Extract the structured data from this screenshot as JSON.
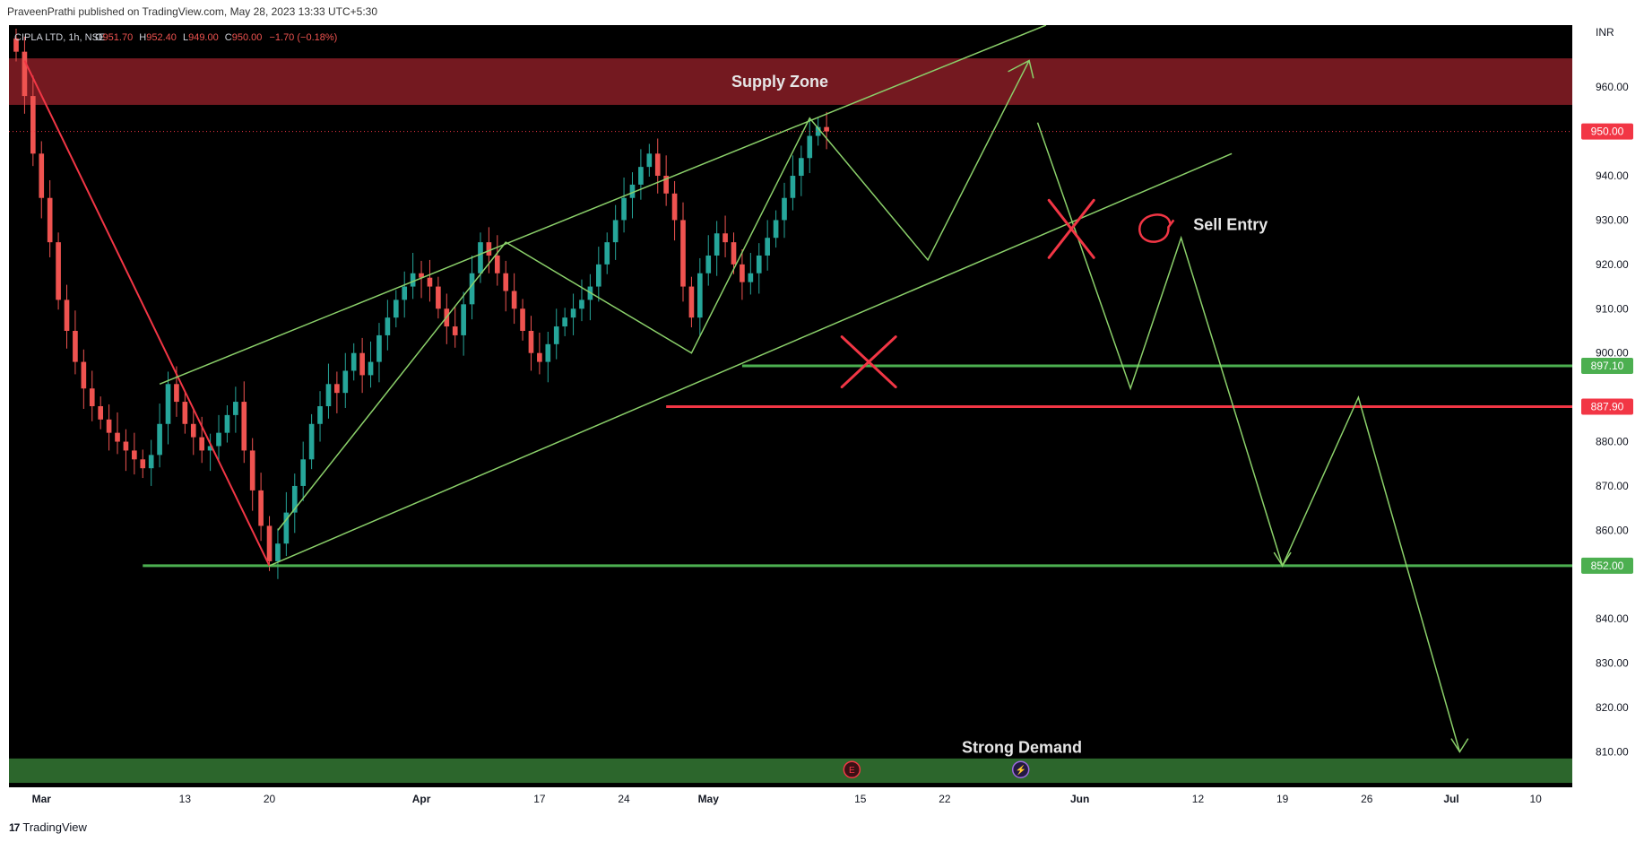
{
  "header": {
    "published": "PraveenPrathi published on TradingView.com, May 28, 2023 13:33 UTC+5:30"
  },
  "footer": {
    "brand": "TradingView",
    "logo": "17"
  },
  "colors": {
    "background": "#000000",
    "up": "#26a69a",
    "down": "#ef5350",
    "supply_zone": "#7a1a22",
    "demand_zone": "#2e6b2e",
    "green_line": "#4caf50",
    "red_line": "#f23645",
    "projection": "#8bd06a"
  },
  "chart_data": {
    "type": "candlestick",
    "symbol": "CIPLA LTD, 1h, NSE",
    "ohlc": {
      "o_label": "O",
      "o": "951.70",
      "h_label": "H",
      "h": "952.40",
      "l_label": "L",
      "l": "949.00",
      "c_label": "C",
      "c": "950.00",
      "change": "−1.70 (−0.18%)"
    },
    "currency": "INR",
    "y_range": [
      802,
      974
    ],
    "y_ticks": [
      {
        "v": 960,
        "t": "960.00"
      },
      {
        "v": 940,
        "t": "940.00"
      },
      {
        "v": 930,
        "t": "930.00"
      },
      {
        "v": 920,
        "t": "920.00"
      },
      {
        "v": 910,
        "t": "910.00"
      },
      {
        "v": 900,
        "t": "900.00"
      },
      {
        "v": 880,
        "t": "880.00"
      },
      {
        "v": 870,
        "t": "870.00"
      },
      {
        "v": 860,
        "t": "860.00"
      },
      {
        "v": 840,
        "t": "840.00"
      },
      {
        "v": 830,
        "t": "830.00"
      },
      {
        "v": 820,
        "t": "820.00"
      },
      {
        "v": 810,
        "t": "810.00"
      }
    ],
    "price_tags": [
      {
        "v": 950.0,
        "t": "950.00",
        "color": "#f23645"
      },
      {
        "v": 897.1,
        "t": "897.10",
        "color": "#4caf50"
      },
      {
        "v": 887.9,
        "t": "887.90",
        "color": "#f23645"
      },
      {
        "v": 852.0,
        "t": "852.00",
        "color": "#4caf50"
      }
    ],
    "x_ticks": [
      {
        "i": 3,
        "t": "Mar"
      },
      {
        "i": 20,
        "t": "13"
      },
      {
        "i": 30,
        "t": "20"
      },
      {
        "i": 48,
        "t": "Apr"
      },
      {
        "i": 62,
        "t": "17"
      },
      {
        "i": 72,
        "t": "24"
      },
      {
        "i": 82,
        "t": "May"
      },
      {
        "i": 100,
        "t": "15"
      },
      {
        "i": 110,
        "t": "22"
      },
      {
        "i": 126,
        "t": "Jun"
      },
      {
        "i": 140,
        "t": "12"
      },
      {
        "i": 150,
        "t": "19"
      },
      {
        "i": 160,
        "t": "26"
      },
      {
        "i": 170,
        "t": "Jul"
      },
      {
        "i": 180,
        "t": "10"
      }
    ],
    "x_max": 182,
    "closes": [
      968,
      958,
      945,
      935,
      925,
      912,
      905,
      898,
      892,
      888,
      885,
      882,
      880,
      878,
      876,
      874,
      877,
      884,
      893,
      889,
      884,
      881,
      878,
      879,
      882,
      886,
      889,
      878,
      869,
      861,
      853,
      857,
      864,
      870,
      876,
      884,
      888,
      893,
      891,
      896,
      900,
      895,
      898,
      904,
      908,
      912,
      915,
      918,
      917,
      915,
      910,
      906,
      904,
      911,
      918,
      925,
      922,
      918,
      914,
      910,
      905,
      900,
      898,
      902,
      906,
      908,
      910,
      912,
      915,
      920,
      925,
      930,
      935,
      938,
      942,
      945,
      940,
      936,
      930,
      915,
      908,
      918,
      922,
      927,
      925,
      920,
      916,
      918,
      922,
      926,
      930,
      935,
      940,
      944,
      949,
      951,
      950
    ],
    "zones": [
      {
        "name": "supply",
        "label": "Supply Zone",
        "y1": 956,
        "y2": 966.5
      },
      {
        "name": "demand",
        "label": "Strong Demand",
        "y1": 803,
        "y2": 808.5
      }
    ],
    "hlines": [
      {
        "y": 897.1,
        "i1": 86,
        "color": "green"
      },
      {
        "y": 887.9,
        "i1": 77,
        "color": "red"
      },
      {
        "y": 852.0,
        "i1": 15,
        "color": "green"
      },
      {
        "y": 950.0,
        "i1": 0,
        "color": "dotted"
      }
    ],
    "annotations": {
      "sell_entry": "Sell Entry",
      "supply_zone": "Supply Zone",
      "strong_demand": "Strong Demand"
    },
    "event_badges": [
      {
        "i": 99,
        "glyph": "E"
      },
      {
        "i": 119,
        "glyph": "⚡"
      }
    ]
  }
}
